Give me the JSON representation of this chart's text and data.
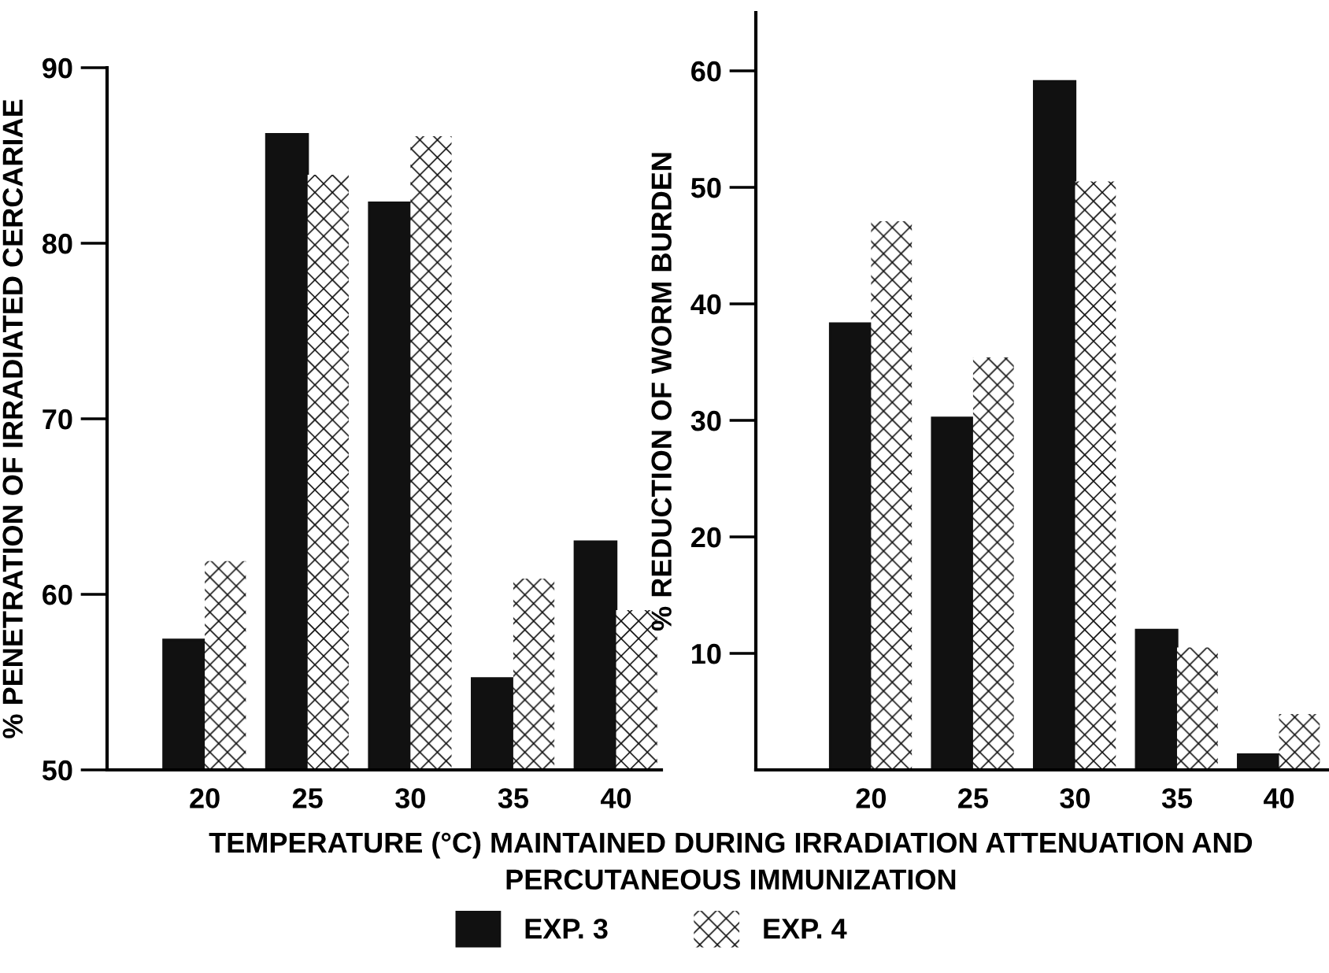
{
  "chart_data": [
    {
      "type": "bar",
      "ylabel": "% PENETRATION OF IRRADIATED CERCARIAE",
      "xlabel": "TEMPERATURE (°C) MAINTAINED DURING IRRADIATION ATTENUATION AND PERCUTANEOUS IMMUNIZATION",
      "categories": [
        "20",
        "25",
        "30",
        "35",
        "40"
      ],
      "ylim": [
        50,
        90
      ],
      "yticks": [
        50,
        60,
        70,
        80,
        90
      ],
      "grid": false,
      "legend": "bottom",
      "series": [
        {
          "name": "EXP. 3",
          "color": "#111111",
          "values": [
            57.4,
            86.2,
            82.3,
            55.2,
            63.0
          ]
        },
        {
          "name": "EXP. 4",
          "color": "#ffffff",
          "values": [
            61.9,
            83.9,
            86.1,
            60.9,
            59.1
          ]
        }
      ]
    },
    {
      "type": "bar",
      "ylabel": "% REDUCTION OF WORM BURDEN",
      "categories": [
        "20",
        "25",
        "30",
        "35",
        "40"
      ],
      "ylim": [
        0,
        65
      ],
      "yticks": [
        10,
        20,
        30,
        40,
        50,
        60
      ],
      "grid": false,
      "series": [
        {
          "color": "#111111",
          "values": [
            38.3,
            30.2,
            59.1,
            12.0,
            1.3
          ]
        },
        {
          "color": "#ffffff",
          "values": [
            47.1,
            35.4,
            50.5,
            10.5,
            4.8
          ]
        }
      ]
    }
  ]
}
